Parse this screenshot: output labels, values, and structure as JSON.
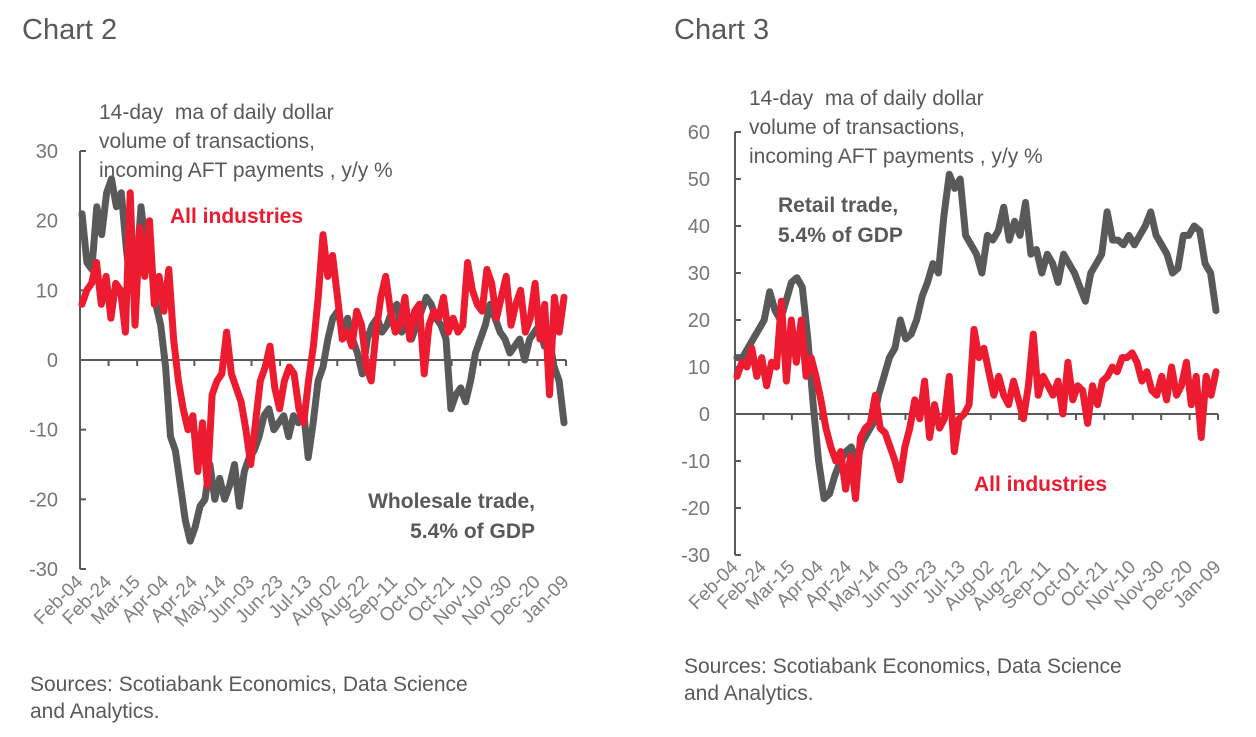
{
  "page": {
    "colors": {
      "all_industries": "#ED1B2F",
      "sector": "#595959",
      "axis": "#595959"
    },
    "source_text": "Sources: Scotiabank Economics, Data Science\nand Analytics."
  },
  "chart_data": [
    {
      "id": "chart2",
      "type": "line",
      "title": "Chart 2",
      "ylabel": "14-day  ma of daily dollar\nvolume of transactions,\nincoming AFT payments , y/y %",
      "xlabel": "",
      "ylim": [
        -30,
        30
      ],
      "yticks": [
        30,
        20,
        10,
        0,
        -10,
        -20,
        -30
      ],
      "x_tick_labels": [
        "Feb-04",
        "Feb-24",
        "Mar-15",
        "Apr-04",
        "Apr-24",
        "May-14",
        "Jun-03",
        "Jun-23",
        "Jul-13",
        "Aug-02",
        "Aug-22",
        "Sep-11",
        "Oct-01",
        "Oct-21",
        "Nov-10",
        "Nov-30",
        "Dec-20",
        "Jan-09"
      ],
      "grid": false,
      "legend": "inline annotations",
      "annotations": [
        {
          "text": "All industries",
          "series": "All industries",
          "position": "top-left"
        },
        {
          "text": "Wholesale trade,\n5.4% of GDP",
          "series": "Wholesale trade",
          "position": "bottom-right"
        }
      ],
      "series": [
        {
          "name": "Wholesale trade",
          "color": "#595959",
          "values": [
            21,
            14,
            13,
            22,
            18,
            24,
            26,
            22,
            24,
            16,
            10,
            12,
            22,
            16,
            14,
            8,
            5,
            -1,
            -11,
            -13,
            -18,
            -23,
            -26,
            -24,
            -21,
            -20,
            -15,
            -20,
            -17,
            -20,
            -18,
            -15,
            -21,
            -16,
            -14,
            -13,
            -11,
            -8,
            -7,
            -10,
            -9,
            -8,
            -11,
            -8,
            -9,
            -7,
            -14,
            -9,
            -3,
            -1,
            3,
            6,
            7,
            4,
            6,
            3,
            1,
            -2,
            3,
            5,
            6,
            4,
            5,
            7,
            8,
            4,
            5,
            3,
            5,
            7,
            9,
            8,
            6,
            5,
            3,
            -7,
            -5,
            -4,
            -6,
            -3,
            1,
            3,
            5,
            8,
            6,
            4,
            3,
            1,
            2,
            3,
            0,
            3,
            4,
            5,
            2,
            3,
            -1,
            -3,
            -9
          ]
        },
        {
          "name": "All industries",
          "color": "#ED1B2F",
          "values": [
            8,
            10,
            11,
            14,
            8,
            12,
            6,
            11,
            10,
            4,
            24,
            5,
            19,
            12,
            20,
            8,
            12,
            7,
            13,
            3,
            -3,
            -7,
            -10,
            -8,
            -16,
            -9,
            -18,
            -5,
            -3,
            -2,
            4,
            -2,
            -4,
            -6,
            -10,
            -15,
            -9,
            -3,
            -1,
            2,
            -4,
            -7,
            -3,
            -1,
            -2,
            -7,
            -9,
            -3,
            2,
            9,
            18,
            12,
            15,
            9,
            3,
            4,
            2,
            7,
            5,
            -1,
            -3,
            4,
            9,
            12,
            7,
            4,
            5,
            9,
            3,
            7,
            8,
            -2,
            5,
            7,
            6,
            9,
            4,
            6,
            4,
            5,
            14,
            10,
            8,
            7,
            13,
            11,
            6,
            9,
            12,
            5,
            8,
            10,
            4,
            6,
            11,
            3,
            8,
            -5,
            9,
            4,
            9
          ]
        }
      ]
    },
    {
      "id": "chart3",
      "type": "line",
      "title": "Chart 3",
      "ylabel": "14-day  ma of daily dollar\nvolume of transactions,\nincoming AFT payments , y/y %",
      "xlabel": "",
      "ylim": [
        -30,
        60
      ],
      "yticks": [
        60,
        50,
        40,
        30,
        20,
        10,
        0,
        -10,
        -20,
        -30
      ],
      "x_tick_labels": [
        "Feb-04",
        "Feb-24",
        "Mar-15",
        "Apr-04",
        "Apr-24",
        "May-14",
        "Jun-03",
        "Jun-23",
        "Jul-13",
        "Aug-02",
        "Aug-22",
        "Sep-11",
        "Oct-01",
        "Oct-21",
        "Nov-10",
        "Nov-30",
        "Dec-20",
        "Jan-09"
      ],
      "grid": false,
      "legend": "inline annotations",
      "annotations": [
        {
          "text": "Retail trade,\n5.4% of GDP",
          "series": "Retail trade",
          "position": "top-left"
        },
        {
          "text": "All industries",
          "series": "All industries",
          "position": "bottom-right"
        }
      ],
      "series": [
        {
          "name": "Retail trade",
          "color": "#595959",
          "values": [
            12,
            12,
            14,
            16,
            18,
            20,
            26,
            22,
            20,
            24,
            28,
            29,
            27,
            16,
            2,
            -10,
            -18,
            -17,
            -13,
            -10,
            -8,
            -7,
            -10,
            -6,
            -4,
            -2,
            4,
            8,
            12,
            14,
            20,
            16,
            17,
            20,
            25,
            28,
            32,
            30,
            42,
            51,
            48,
            50,
            38,
            36,
            34,
            30,
            38,
            37,
            39,
            44,
            37,
            41,
            38,
            45,
            34,
            35,
            30,
            34,
            32,
            28,
            34,
            32,
            30,
            27,
            24,
            30,
            32,
            34,
            43,
            37,
            37,
            36,
            38,
            36,
            38,
            40,
            43,
            38,
            36,
            34,
            30,
            31,
            38,
            38,
            40,
            39,
            32,
            30,
            22
          ]
        },
        {
          "name": "All industries",
          "color": "#ED1B2F",
          "values": [
            8,
            11,
            10,
            14,
            8,
            12,
            6,
            11,
            10,
            24,
            7,
            20,
            11,
            20,
            8,
            12,
            8,
            3,
            -3,
            -7,
            -10,
            -8,
            -16,
            -9,
            -18,
            -5,
            -3,
            -2,
            4,
            -3,
            -4,
            -7,
            -10,
            -14,
            -7,
            -3,
            3,
            -1,
            7,
            -5,
            2,
            -3,
            -1,
            8,
            -8,
            -1,
            0,
            2,
            18,
            12,
            14,
            9,
            4,
            8,
            4,
            2,
            7,
            3,
            -1,
            6,
            17,
            4,
            8,
            6,
            4,
            7,
            0,
            11,
            3,
            6,
            5,
            -2,
            6,
            2,
            7,
            8,
            10,
            9,
            12,
            12,
            13,
            11,
            7,
            9,
            5,
            4,
            8,
            3,
            10,
            4,
            6,
            11,
            2,
            8,
            -5,
            8,
            4,
            9
          ]
        }
      ]
    }
  ]
}
